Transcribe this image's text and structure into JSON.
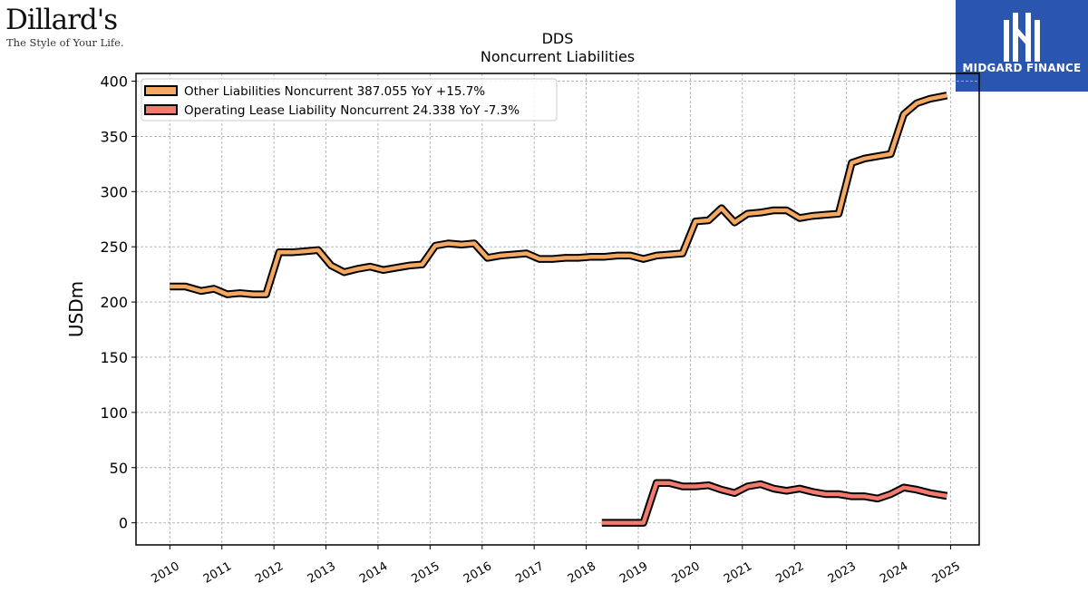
{
  "brand": {
    "company_logo": {
      "name": "Dillard's",
      "tagline": "The Style of Your Life."
    },
    "publisher_logo": {
      "name": "MIDGARD FINANCE",
      "color": "#2a56b0"
    }
  },
  "chart_data": {
    "type": "line",
    "title": "DDS",
    "subtitle": "Noncurrent  Liabilities",
    "ylabel": "USDm",
    "xlabel": "",
    "ylim": [
      -20,
      407
    ],
    "xlim": [
      2009.35,
      2025.55
    ],
    "yticks": [
      0,
      50,
      100,
      150,
      200,
      250,
      300,
      350,
      400
    ],
    "xticks": [
      "2010",
      "2011",
      "2012",
      "2013",
      "2014",
      "2015",
      "2016",
      "2017",
      "2018",
      "2019",
      "2020",
      "2021",
      "2022",
      "2023",
      "2024",
      "2025"
    ],
    "grid": true,
    "legend_position": "top-left",
    "series": [
      {
        "name": "Other Liabilities Noncurrent  387.055 YoY +15.7%",
        "color": "#f4a862",
        "points": [
          [
            2010.0,
            214
          ],
          [
            2010.3,
            214
          ],
          [
            2010.6,
            210
          ],
          [
            2010.85,
            212
          ],
          [
            2011.1,
            207
          ],
          [
            2011.35,
            208
          ],
          [
            2011.6,
            207
          ],
          [
            2011.85,
            207
          ],
          [
            2012.1,
            245
          ],
          [
            2012.35,
            245
          ],
          [
            2012.6,
            246
          ],
          [
            2012.85,
            247
          ],
          [
            2013.1,
            233
          ],
          [
            2013.35,
            227
          ],
          [
            2013.6,
            230
          ],
          [
            2013.85,
            232
          ],
          [
            2014.1,
            229
          ],
          [
            2014.35,
            231
          ],
          [
            2014.6,
            233
          ],
          [
            2014.85,
            234
          ],
          [
            2015.1,
            251
          ],
          [
            2015.35,
            253
          ],
          [
            2015.6,
            252
          ],
          [
            2015.85,
            253
          ],
          [
            2016.1,
            240
          ],
          [
            2016.35,
            242
          ],
          [
            2016.6,
            243
          ],
          [
            2016.85,
            244
          ],
          [
            2017.1,
            239
          ],
          [
            2017.35,
            239
          ],
          [
            2017.6,
            240
          ],
          [
            2017.85,
            240
          ],
          [
            2018.1,
            241
          ],
          [
            2018.35,
            241
          ],
          [
            2018.6,
            242
          ],
          [
            2018.85,
            242
          ],
          [
            2019.1,
            239
          ],
          [
            2019.35,
            242
          ],
          [
            2019.6,
            243
          ],
          [
            2019.85,
            244
          ],
          [
            2020.1,
            273
          ],
          [
            2020.35,
            274
          ],
          [
            2020.6,
            285
          ],
          [
            2020.85,
            272
          ],
          [
            2021.1,
            280
          ],
          [
            2021.35,
            281
          ],
          [
            2021.6,
            283
          ],
          [
            2021.85,
            283
          ],
          [
            2022.1,
            276
          ],
          [
            2022.35,
            278
          ],
          [
            2022.6,
            279
          ],
          [
            2022.85,
            280
          ],
          [
            2023.1,
            326
          ],
          [
            2023.35,
            330
          ],
          [
            2023.6,
            332
          ],
          [
            2023.85,
            334
          ],
          [
            2024.1,
            370
          ],
          [
            2024.35,
            380
          ],
          [
            2024.6,
            384
          ],
          [
            2024.93,
            387.055
          ]
        ]
      },
      {
        "name": "Operating Lease Liability Noncurrent  24.338 YoY -7.3%",
        "color": "#f47a6e",
        "points": [
          [
            2018.3,
            0
          ],
          [
            2018.6,
            0
          ],
          [
            2018.85,
            0
          ],
          [
            2019.1,
            0
          ],
          [
            2019.35,
            36
          ],
          [
            2019.6,
            36
          ],
          [
            2019.85,
            33
          ],
          [
            2020.1,
            33
          ],
          [
            2020.35,
            34
          ],
          [
            2020.6,
            30
          ],
          [
            2020.85,
            27
          ],
          [
            2021.1,
            33
          ],
          [
            2021.35,
            35
          ],
          [
            2021.6,
            31
          ],
          [
            2021.85,
            29
          ],
          [
            2022.1,
            31
          ],
          [
            2022.35,
            28
          ],
          [
            2022.6,
            26
          ],
          [
            2022.85,
            26
          ],
          [
            2023.1,
            24
          ],
          [
            2023.35,
            24
          ],
          [
            2023.6,
            22
          ],
          [
            2023.85,
            26
          ],
          [
            2024.1,
            32
          ],
          [
            2024.35,
            30
          ],
          [
            2024.6,
            27
          ],
          [
            2024.93,
            24.338
          ]
        ]
      }
    ]
  }
}
